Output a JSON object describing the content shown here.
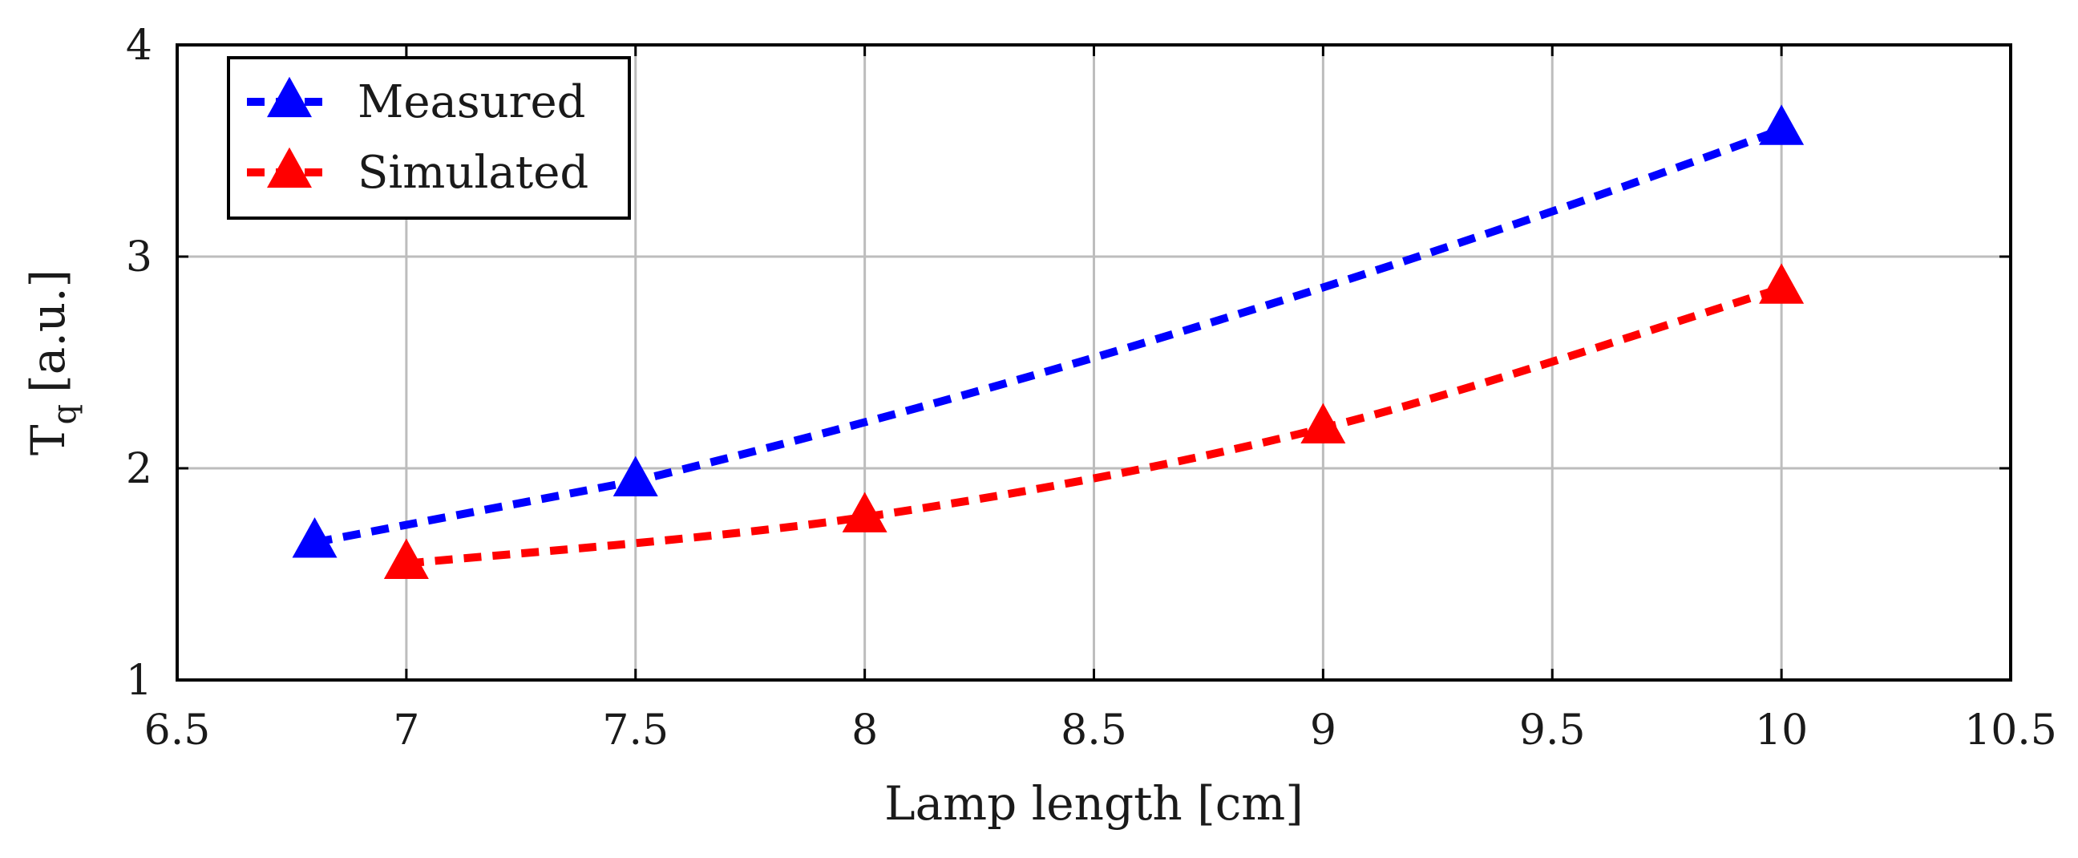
{
  "chart_data": {
    "type": "line",
    "title": "",
    "xlabel": "Lamp length [cm]",
    "ylabel": "T",
    "ylabel_subscript": "q",
    "ylabel_unit": "[a.u.]",
    "xlim": [
      6.5,
      10.5
    ],
    "ylim": [
      1,
      4
    ],
    "xticks": [
      6.5,
      7,
      7.5,
      8,
      8.5,
      9,
      9.5,
      10,
      10.5
    ],
    "xtick_labels": [
      "6.5",
      "7",
      "7.5",
      "8",
      "8.5",
      "9",
      "9.5",
      "10",
      "10.5"
    ],
    "yticks": [
      1,
      2,
      3,
      4
    ],
    "ytick_labels": [
      "1",
      "2",
      "3",
      "4"
    ],
    "grid": true,
    "legend_position": "top-left",
    "series": [
      {
        "name": "Measured",
        "color": "#0000ff",
        "marker": "triangle",
        "line_style": "dashed",
        "x": [
          6.8,
          7.5,
          10
        ],
        "y": [
          1.65,
          1.94,
          3.6
        ],
        "curve_control": {
          "x": 8.75,
          "y": 2.6
        }
      },
      {
        "name": "Simulated",
        "color": "#ff0000",
        "marker": "triangle",
        "line_style": "dashed",
        "x": [
          7,
          8,
          9,
          10
        ],
        "y": [
          1.55,
          1.77,
          2.19,
          2.85
        ]
      }
    ]
  }
}
